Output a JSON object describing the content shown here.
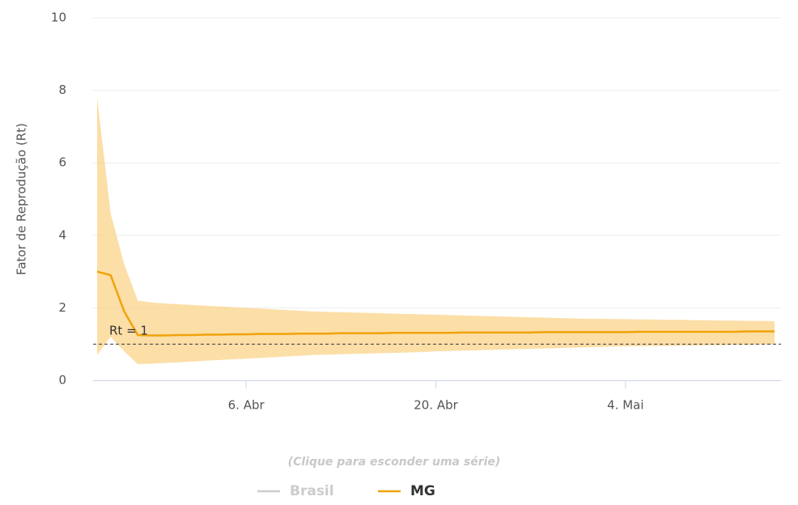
{
  "chart_data": {
    "type": "line",
    "y_label": "Fator de Reprodução (Rt)",
    "legend_hint": "(Clique para esconder uma série)",
    "categories": [
      null,
      null,
      null,
      null,
      null,
      null,
      null,
      null,
      null,
      null,
      null,
      "6. Abr",
      null,
      null,
      null,
      null,
      null,
      null,
      null,
      null,
      null,
      null,
      null,
      null,
      null,
      "20. Abr",
      null,
      null,
      null,
      null,
      null,
      null,
      null,
      null,
      null,
      null,
      null,
      null,
      null,
      "4. Mai",
      null,
      null,
      null,
      null,
      null,
      null,
      null,
      null,
      null,
      null,
      null
    ],
    "series": [
      {
        "name": "Brasil",
        "color": "#cccccc",
        "visible": false,
        "values": [
          null,
          null,
          null,
          null,
          null,
          null,
          null,
          null,
          null,
          null,
          null,
          null,
          null,
          null,
          null,
          null,
          null,
          null,
          null,
          null,
          null,
          null,
          null,
          null,
          null,
          null,
          null,
          null,
          null,
          null,
          null,
          null,
          null,
          null,
          null,
          null,
          null,
          null,
          null,
          null,
          null,
          null,
          null,
          null,
          null,
          null,
          null,
          null,
          null,
          null,
          null
        ]
      },
      {
        "name": "MG",
        "color": "#f0a30a",
        "band_color": "#fbd38a",
        "visible": true,
        "values": [
          3.0,
          2.9,
          1.9,
          1.25,
          1.24,
          1.24,
          1.25,
          1.25,
          1.26,
          1.26,
          1.27,
          1.27,
          1.28,
          1.28,
          1.28,
          1.29,
          1.29,
          1.29,
          1.3,
          1.3,
          1.3,
          1.3,
          1.31,
          1.31,
          1.31,
          1.31,
          1.31,
          1.32,
          1.32,
          1.32,
          1.32,
          1.32,
          1.32,
          1.33,
          1.33,
          1.33,
          1.33,
          1.33,
          1.33,
          1.33,
          1.34,
          1.34,
          1.34,
          1.34,
          1.34,
          1.34,
          1.34,
          1.34,
          1.35,
          1.35,
          1.35
        ],
        "upper": [
          7.8,
          4.6,
          3.2,
          2.2,
          2.15,
          2.12,
          2.1,
          2.08,
          2.06,
          2.04,
          2.02,
          2.0,
          1.98,
          1.96,
          1.94,
          1.92,
          1.9,
          1.89,
          1.88,
          1.87,
          1.86,
          1.85,
          1.84,
          1.83,
          1.82,
          1.81,
          1.8,
          1.79,
          1.78,
          1.77,
          1.76,
          1.75,
          1.74,
          1.73,
          1.72,
          1.71,
          1.7,
          1.7,
          1.69,
          1.69,
          1.68,
          1.68,
          1.67,
          1.67,
          1.66,
          1.66,
          1.65,
          1.65,
          1.64,
          1.64,
          1.63
        ],
        "lower": [
          0.7,
          1.2,
          0.8,
          0.45,
          0.46,
          0.48,
          0.5,
          0.52,
          0.54,
          0.56,
          0.58,
          0.6,
          0.62,
          0.64,
          0.66,
          0.68,
          0.7,
          0.71,
          0.72,
          0.73,
          0.74,
          0.75,
          0.76,
          0.77,
          0.78,
          0.8,
          0.81,
          0.82,
          0.83,
          0.84,
          0.85,
          0.86,
          0.87,
          0.88,
          0.89,
          0.9,
          0.91,
          0.92,
          0.93,
          0.94,
          0.94,
          0.95,
          0.95,
          0.96,
          0.96,
          0.97,
          0.97,
          0.98,
          0.98,
          0.99,
          0.99
        ]
      }
    ],
    "reference_line": {
      "value": 1,
      "label": "Rt = 1"
    },
    "ylim": [
      0,
      10
    ],
    "yticks": [
      0,
      2,
      4,
      6,
      8,
      10
    ],
    "grid": true
  }
}
